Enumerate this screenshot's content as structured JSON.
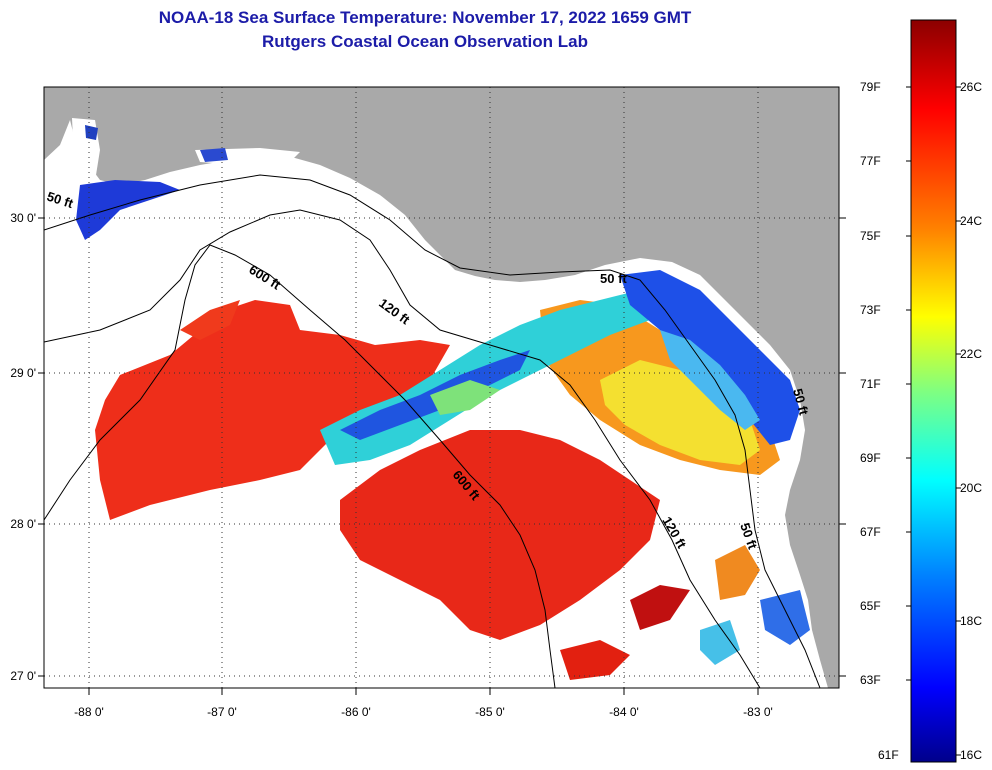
{
  "title": {
    "line1": "NOAA-18 Sea Surface Temperature:  November 17, 2022 1659 GMT",
    "line2": "Rutgers Coastal Ocean Observation Lab"
  },
  "map": {
    "lat_labels": [
      "30 0'",
      "29 0'",
      "28 0'",
      "27 0'"
    ],
    "lon_labels": [
      "-88 0'",
      "-87 0'",
      "-86 0'",
      "-85 0'",
      "-84 0'",
      "-83 0'"
    ],
    "contour_labels": [
      "50 ft",
      "600 ft",
      "120 ft",
      "50 ft",
      "600 ft",
      "120 ft",
      "50 ft",
      "50 ft"
    ],
    "colors": {
      "land": "#a9a9a9",
      "no_data": "#ffffff",
      "contour": "#000000"
    }
  },
  "colorbar": {
    "fahrenheit_labels": [
      "79F",
      "77F",
      "75F",
      "73F",
      "71F",
      "69F",
      "67F",
      "65F",
      "63F",
      "61F"
    ],
    "celsius_labels": [
      "26C",
      "24C",
      "22C",
      "20C",
      "18C",
      "16C"
    ],
    "range_f": [
      61,
      80
    ],
    "stops": [
      "#00008b",
      "#0000ff",
      "#0080ff",
      "#00ffff",
      "#80ff80",
      "#ffff00",
      "#ff8000",
      "#ff0000",
      "#8b0000"
    ]
  }
}
